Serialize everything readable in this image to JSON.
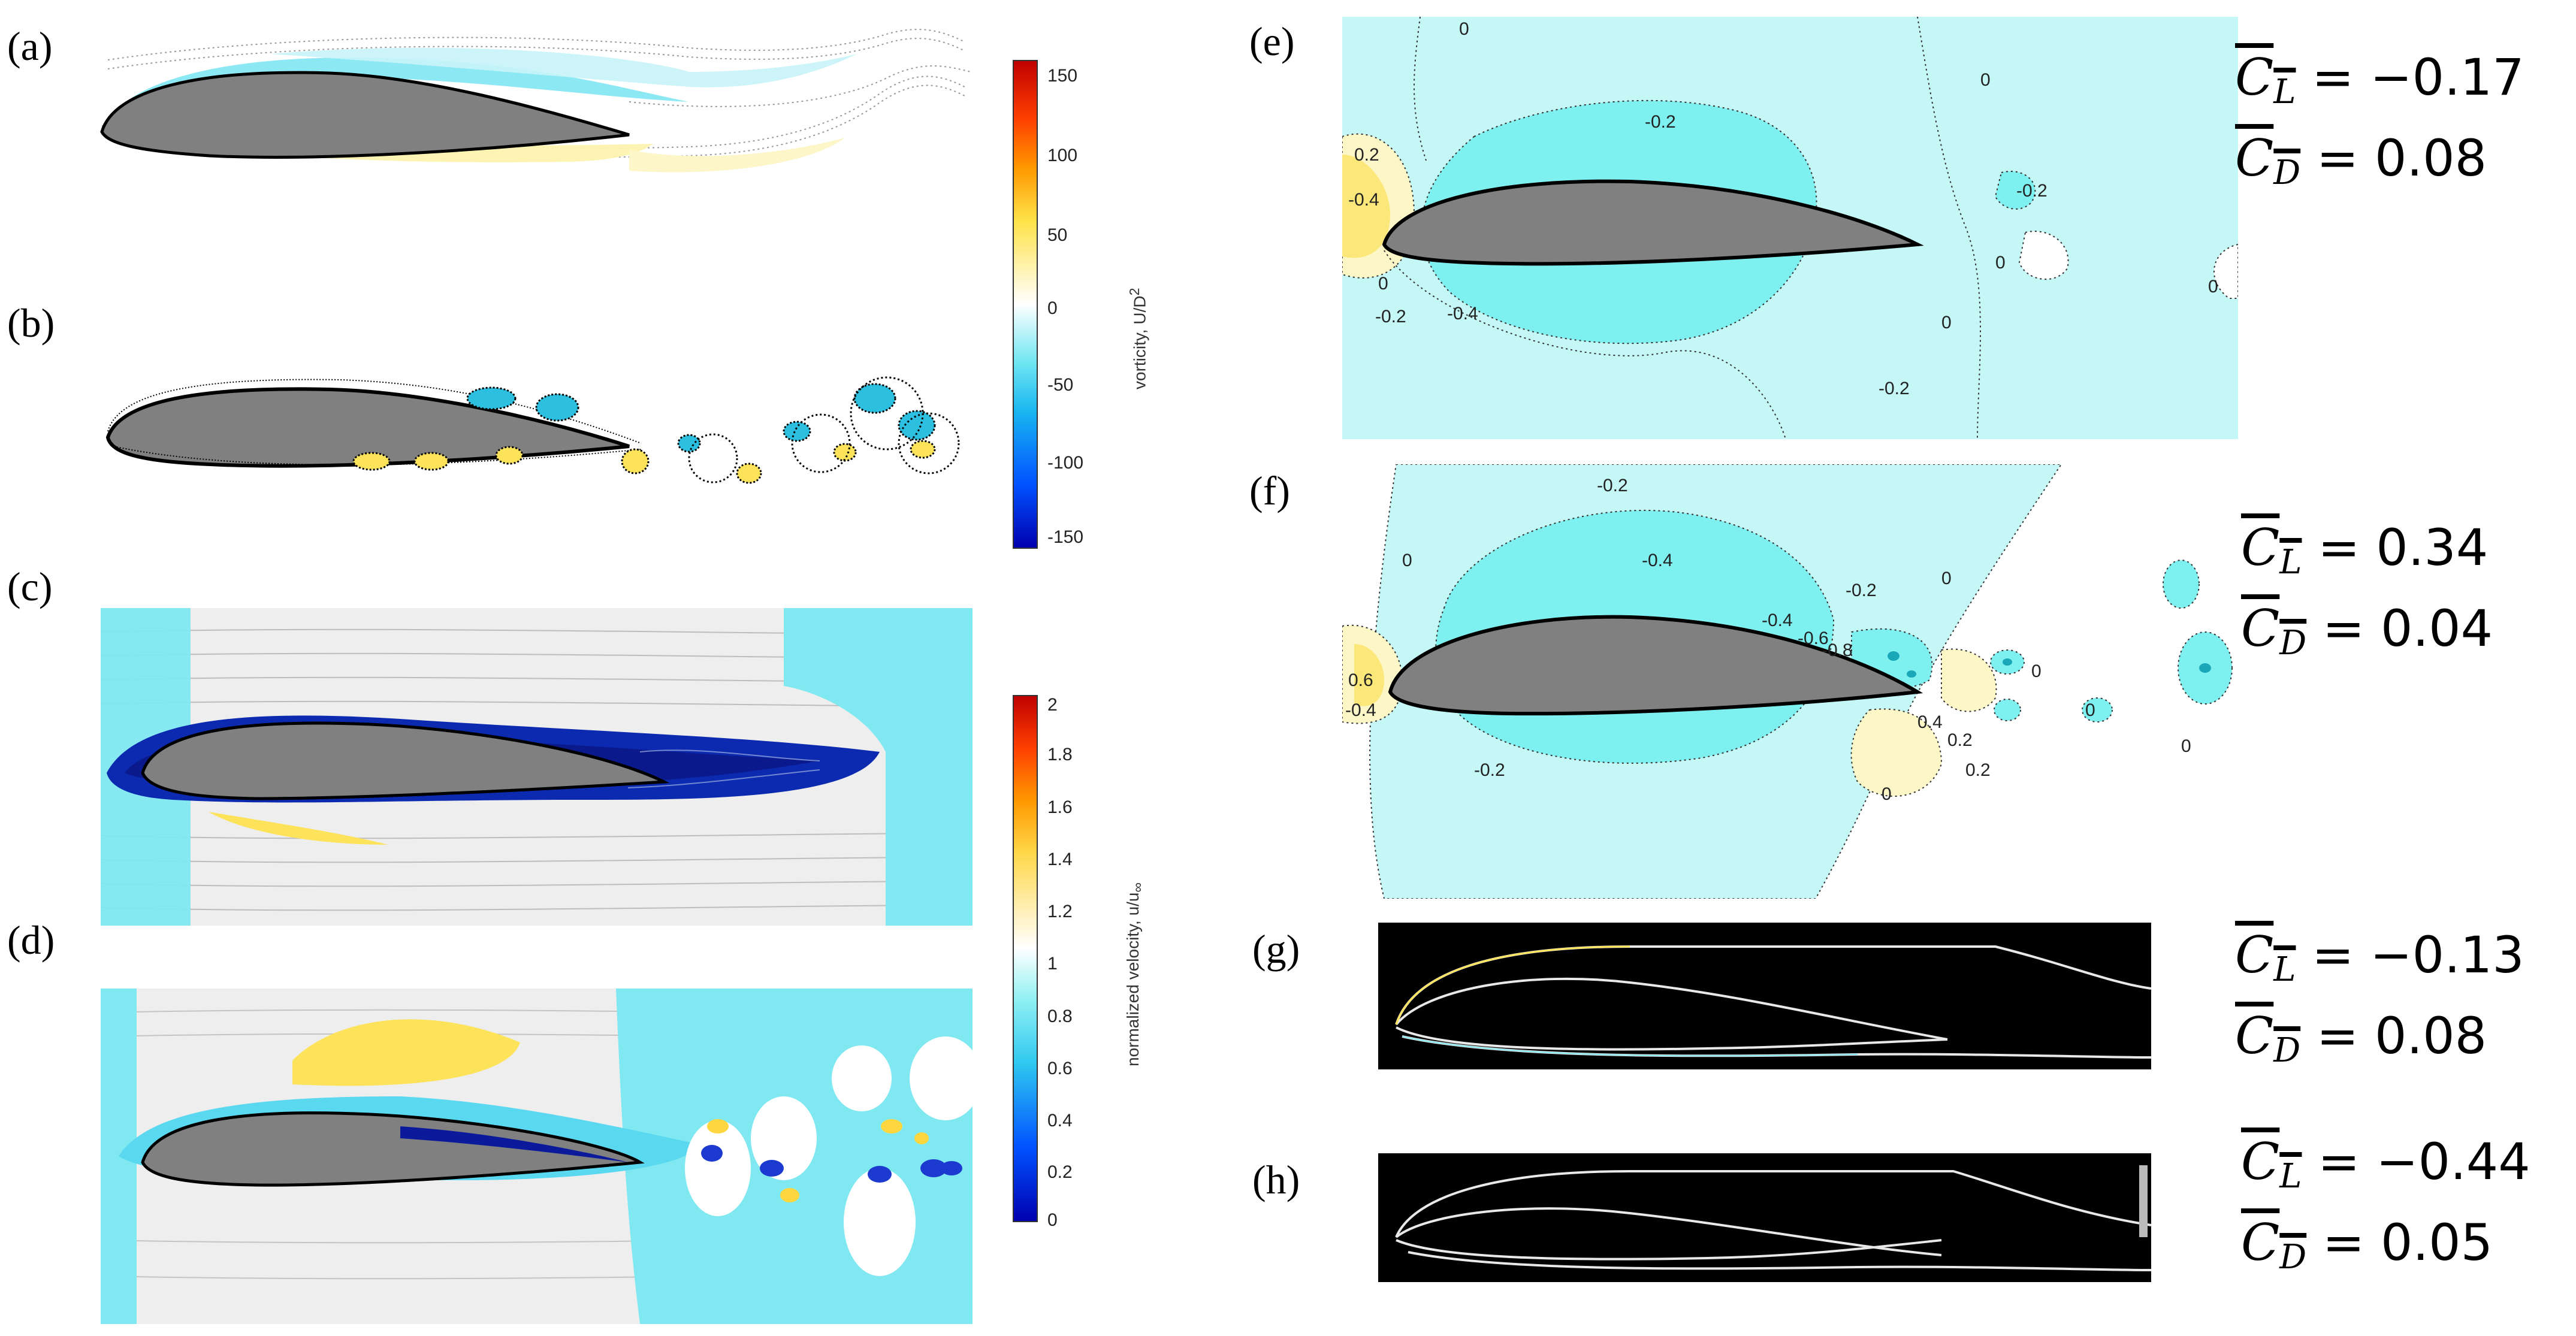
{
  "panel_labels": {
    "a": "(a)",
    "b": "(b)",
    "c": "(c)",
    "d": "(d)",
    "e": "(e)",
    "f": "(f)",
    "g": "(g)",
    "h": "(h)"
  },
  "colorbar_vorticity": {
    "title": "vorticity, U/D",
    "title_superscript": "2",
    "ticks": [
      "150",
      "100",
      "50",
      "0",
      "-50",
      "-100",
      "-150"
    ]
  },
  "colorbar_velocity": {
    "title": "normalized velocity, u/u",
    "title_subscript": "∞",
    "ticks": [
      "2",
      "1.8",
      "1.6",
      "1.4",
      "1.2",
      "1",
      "0.8",
      "0.6",
      "0.4",
      "0.2",
      "0"
    ]
  },
  "contour_labels": {
    "e": [
      "0",
      "-0.2",
      "0.2",
      "-0.4",
      "0",
      "-0.2",
      "-0.4",
      "0",
      "-0.2",
      "-0.2",
      "0",
      "0",
      "0"
    ],
    "f": [
      "-0.2",
      "0",
      "-0.4",
      "-0.2",
      "0",
      "0.6",
      "-0.4",
      "-0.2",
      "-0.4",
      "-0.6",
      "-0.8",
      "0.4",
      "0.2",
      "0.2",
      "0",
      "0",
      "0",
      "0"
    ]
  },
  "coefficients": {
    "e": {
      "cl_value": "= −0.17",
      "cd_value": "=   0.08"
    },
    "f": {
      "cl_value": "= 0.34",
      "cd_value": " = 0.04"
    },
    "g": {
      "cl_value": " = −0.13",
      "cd_value": " =   0.08"
    },
    "h": {
      "cl_value": " = −0.44",
      "cd_value": " =   0.05"
    },
    "cl_symbol": "C",
    "cl_sub": "L",
    "cd_symbol": "C",
    "cd_sub": "D"
  },
  "colors": {
    "airfoil_fill": "#808080",
    "cyan_field": "#c6f7f7",
    "cyan_mid": "#7ff0f0",
    "yellow_field": "#fdf7c8",
    "deep_blue": "#0a1a9a",
    "black_bg": "#000000"
  }
}
